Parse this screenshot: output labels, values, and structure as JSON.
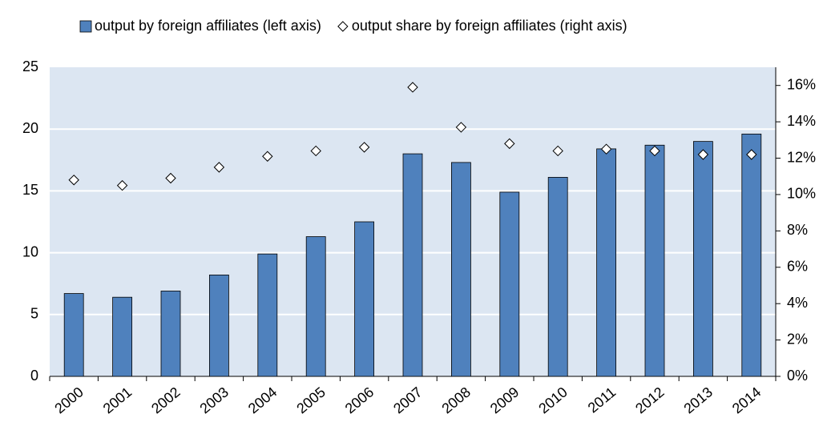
{
  "chart_data": {
    "type": "bar",
    "categories": [
      "2000",
      "2001",
      "2002",
      "2003",
      "2004",
      "2005",
      "2006",
      "2007",
      "2008",
      "2009",
      "2010",
      "2011",
      "2012",
      "2013",
      "2014"
    ],
    "series": [
      {
        "name": "output by foreign affiliates (left axis)",
        "type": "bar",
        "color": "#4f81bd",
        "values": [
          6.7,
          6.4,
          6.9,
          8.2,
          9.9,
          11.3,
          12.5,
          18.0,
          17.3,
          14.9,
          16.1,
          18.4,
          18.7,
          19.0,
          19.6
        ]
      },
      {
        "name": "output share by foreign affiliates (right axis)",
        "type": "scatter",
        "axis": "y2",
        "color": "#ffffff",
        "values": [
          10.8,
          10.5,
          10.9,
          11.5,
          12.1,
          12.4,
          12.6,
          15.9,
          13.7,
          12.8,
          12.4,
          12.5,
          12.4,
          12.2,
          12.2
        ]
      }
    ],
    "ylim": [
      0,
      25
    ],
    "yticks": [
      0,
      5,
      10,
      15,
      20,
      25
    ],
    "y2lim": [
      0,
      17
    ],
    "y2ticks": [
      {
        "value": 0,
        "label": "0%"
      },
      {
        "value": 2,
        "label": "2%"
      },
      {
        "value": 4,
        "label": "4%"
      },
      {
        "value": 6,
        "label": "6%"
      },
      {
        "value": 8,
        "label": "8%"
      },
      {
        "value": 10,
        "label": "10%"
      },
      {
        "value": 12,
        "label": "12%"
      },
      {
        "value": 14,
        "label": "14%"
      },
      {
        "value": 16,
        "label": "16%"
      }
    ],
    "grid": true,
    "legend": "top",
    "background": "#dce6f2"
  }
}
